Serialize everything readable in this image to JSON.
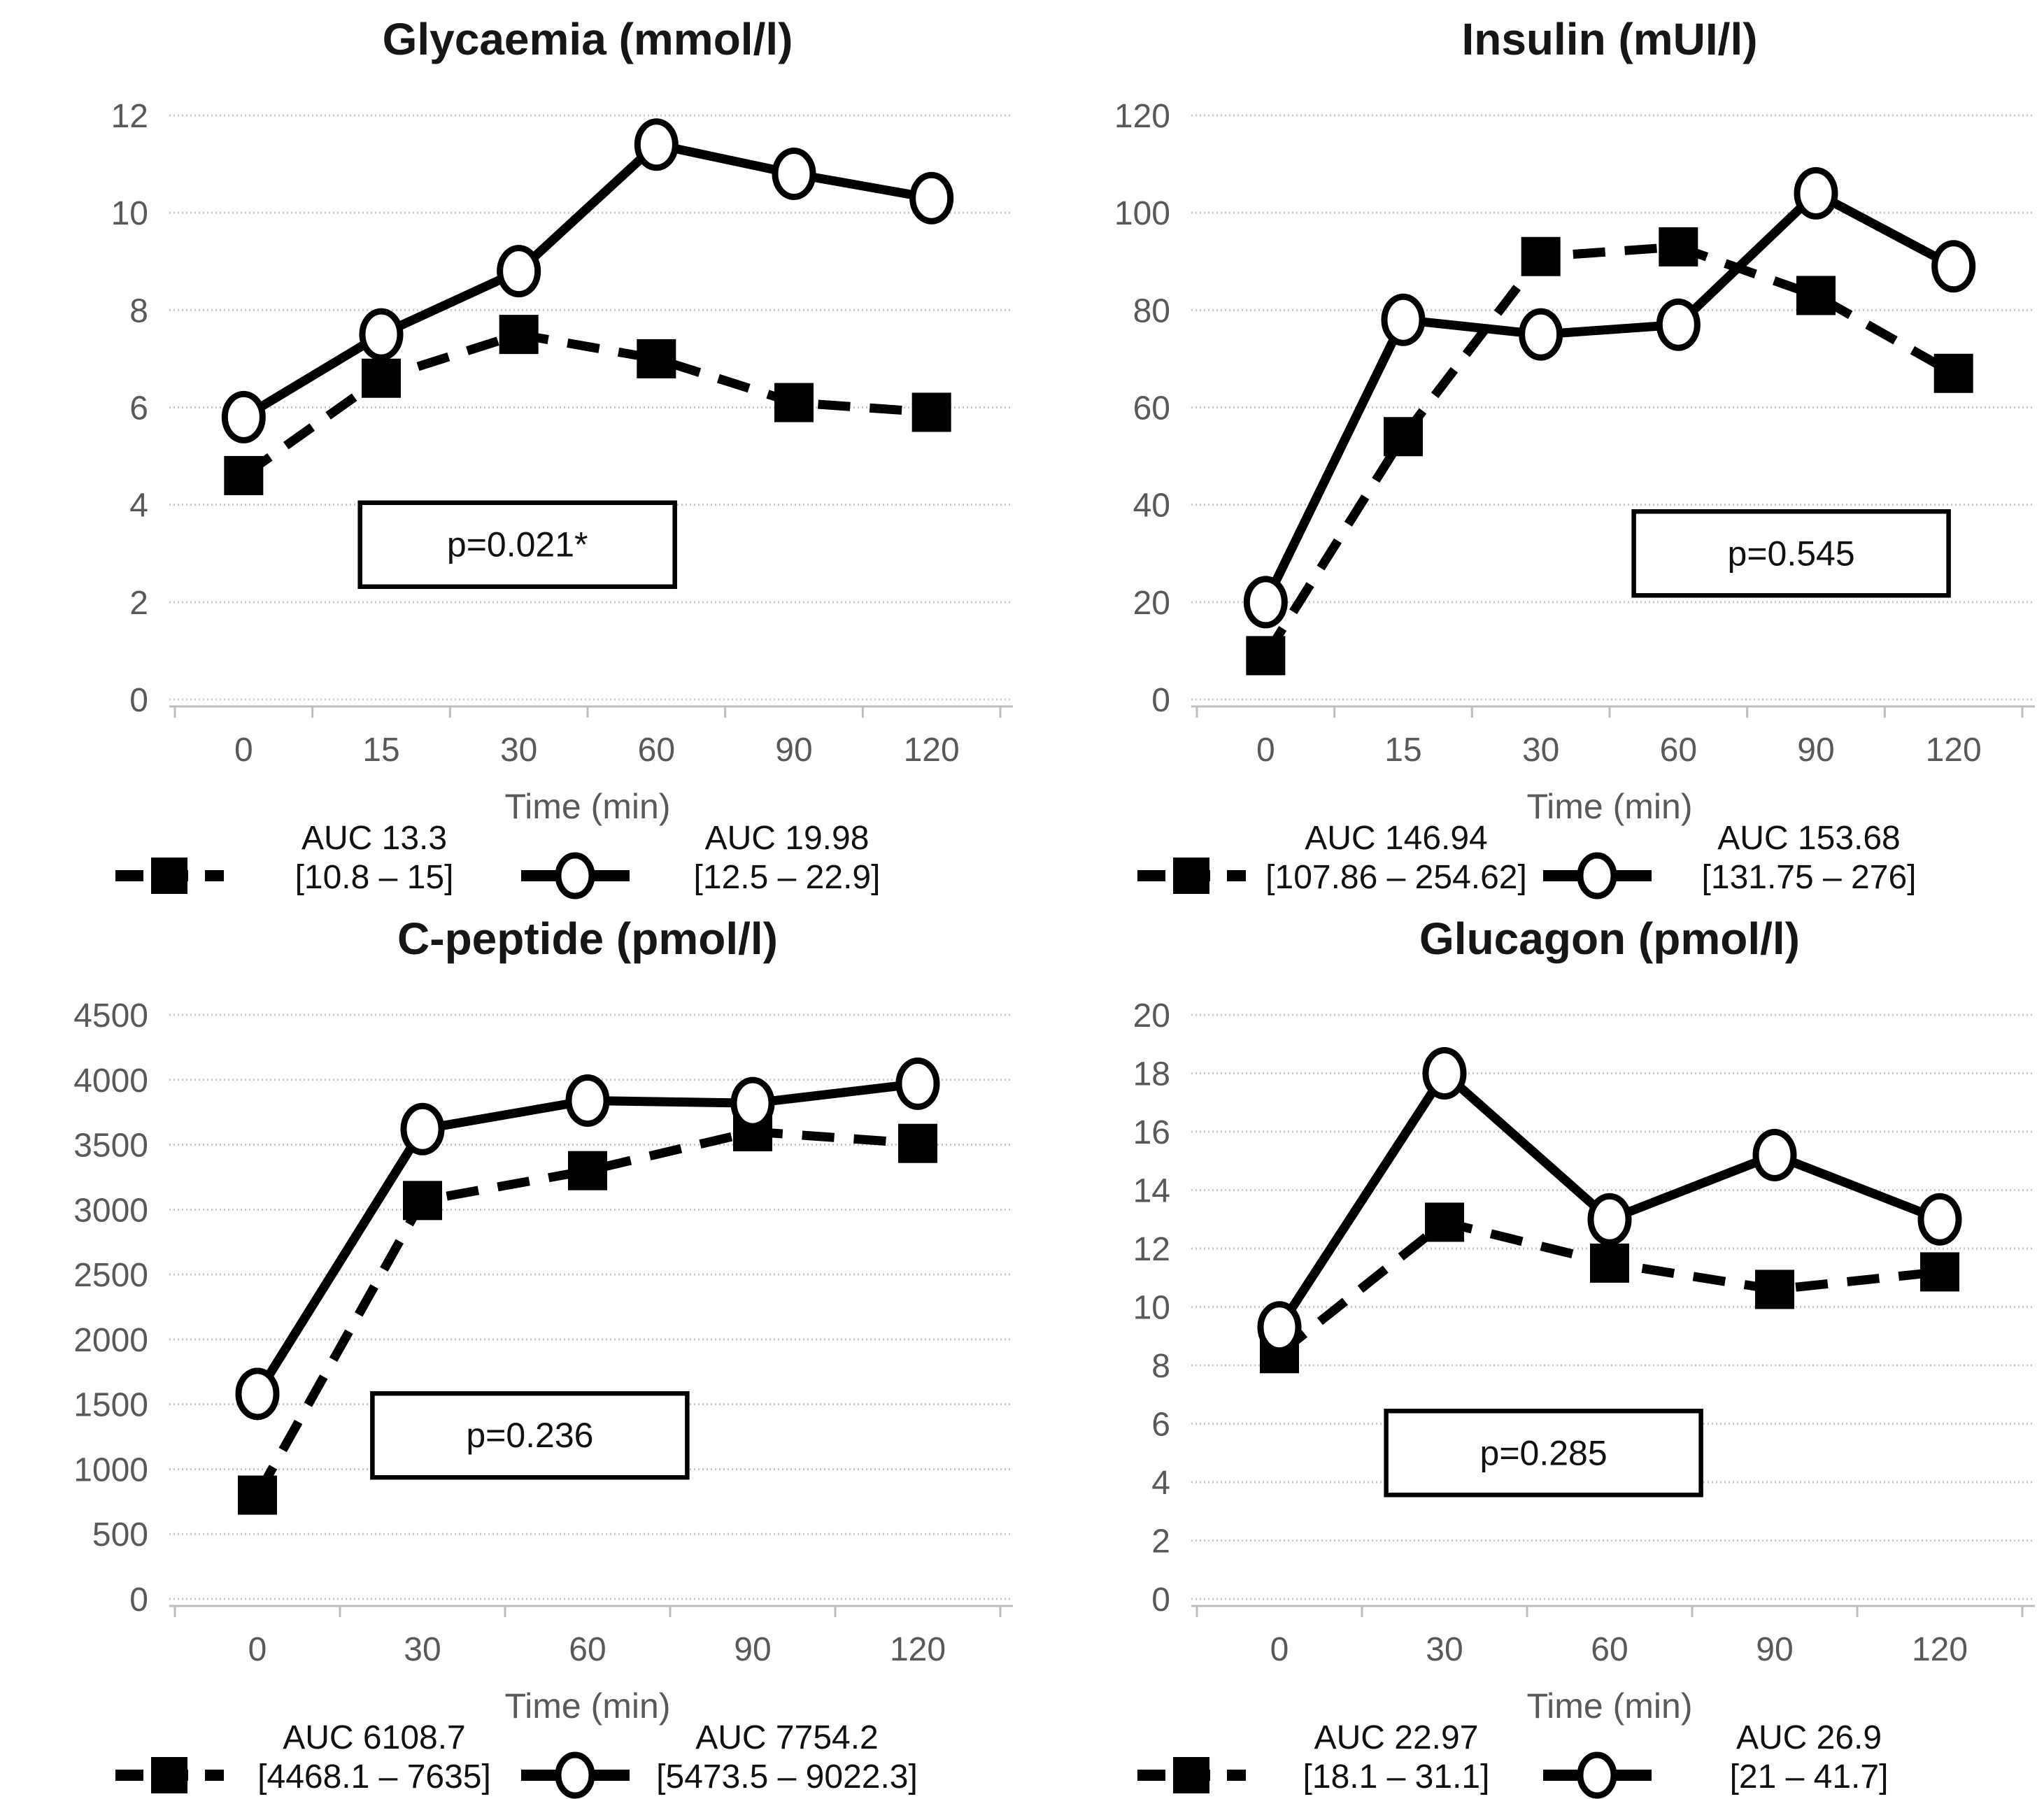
{
  "page": {
    "background": "#ffffff",
    "description": "Four-panel line chart figure comparing two test conditions over time"
  },
  "colors": {
    "line": "#000000",
    "axis_text": "#595959",
    "gridline": "#c9c9c9",
    "marker_fill_square": "#000000",
    "marker_fill_circle": "#ffffff",
    "p_box_border": "#000000"
  },
  "chart_data": [
    {
      "type": "line",
      "title": "Glycaemia (mmol/l)",
      "xlabel": "Time (min)",
      "categories": [
        0,
        15,
        30,
        60,
        90,
        120
      ],
      "ylim": [
        0,
        12
      ],
      "yticks": [
        0,
        2,
        4,
        6,
        8,
        10,
        12
      ],
      "grid": true,
      "legend_position": "bottom",
      "p_value_label": "p=0.021*",
      "p_box": {
        "x": 0.415,
        "y": 0.735
      },
      "series": [
        {
          "id": "dashed-squares",
          "marker": "square",
          "line_style": "dashed",
          "values": [
            4.6,
            6.6,
            7.5,
            7.0,
            6.1,
            5.9
          ],
          "legend_line1": "AUC 13.3",
          "legend_line2": "[10.8 – 15]"
        },
        {
          "id": "solid-circles",
          "marker": "circle",
          "line_style": "solid",
          "values": [
            5.8,
            7.5,
            8.8,
            11.4,
            10.8,
            10.3
          ],
          "legend_line1": "AUC 19.98",
          "legend_line2": "[12.5 – 22.9]"
        }
      ]
    },
    {
      "type": "line",
      "title": "Insulin (mUI/l)",
      "xlabel": "Time (min)",
      "categories": [
        0,
        15,
        30,
        60,
        90,
        120
      ],
      "ylim": [
        0,
        120
      ],
      "yticks": [
        0,
        20,
        40,
        60,
        80,
        100,
        120
      ],
      "grid": true,
      "legend_position": "bottom",
      "p_value_label": "p=0.545",
      "p_box": {
        "x": 0.72,
        "y": 0.75
      },
      "series": [
        {
          "id": "dashed-squares",
          "marker": "square",
          "line_style": "dashed",
          "values": [
            9,
            54,
            91,
            93,
            83,
            67
          ],
          "legend_line1": "AUC 146.94",
          "legend_line2": "[107.86 – 254.62]"
        },
        {
          "id": "solid-circles",
          "marker": "circle",
          "line_style": "solid",
          "values": [
            20,
            78,
            75,
            77,
            104,
            89
          ],
          "legend_line1": "AUC 153.68",
          "legend_line2": "[131.75 – 276]"
        }
      ]
    },
    {
      "type": "line",
      "title": "C-peptide (pmol/l)",
      "xlabel": "Time (min)",
      "categories": [
        0,
        30,
        60,
        90,
        120
      ],
      "ylim": [
        0,
        4500
      ],
      "yticks": [
        0,
        500,
        1000,
        1500,
        2000,
        2500,
        3000,
        3500,
        4000,
        4500
      ],
      "grid": true,
      "legend_position": "bottom",
      "p_value_label": "p=0.236",
      "p_box": {
        "x": 0.43,
        "y": 0.72
      },
      "series": [
        {
          "id": "dashed-squares",
          "marker": "square",
          "line_style": "dashed",
          "values": [
            800,
            3070,
            3300,
            3600,
            3510
          ],
          "legend_line1": "AUC 6108.7",
          "legend_line2": "[4468.1 – 7635]"
        },
        {
          "id": "solid-circles",
          "marker": "circle",
          "line_style": "solid",
          "values": [
            1580,
            3620,
            3840,
            3820,
            3970
          ],
          "legend_line1": "AUC 7754.2",
          "legend_line2": "[5473.5 – 9022.3]"
        }
      ]
    },
    {
      "type": "line",
      "title": "Glucagon (pmol/l)",
      "xlabel": "Time (min)",
      "categories": [
        0,
        30,
        60,
        90,
        120
      ],
      "ylim": [
        0,
        20
      ],
      "yticks": [
        0,
        2,
        4,
        6,
        8,
        10,
        12,
        14,
        16,
        18,
        20
      ],
      "grid": true,
      "legend_position": "bottom",
      "p_value_label": "p=0.285",
      "p_box": {
        "x": 0.42,
        "y": 0.75
      },
      "series": [
        {
          "id": "dashed-squares",
          "marker": "square",
          "line_style": "dashed",
          "values": [
            8.4,
            12.9,
            11.5,
            10.6,
            11.2
          ],
          "legend_line1": "AUC 22.97",
          "legend_line2": "[18.1 – 31.1]"
        },
        {
          "id": "solid-circles",
          "marker": "circle",
          "line_style": "solid",
          "values": [
            9.3,
            18,
            13,
            15.2,
            13
          ],
          "legend_line1": "AUC 26.9",
          "legend_line2": "[21 – 41.7]"
        }
      ]
    }
  ]
}
